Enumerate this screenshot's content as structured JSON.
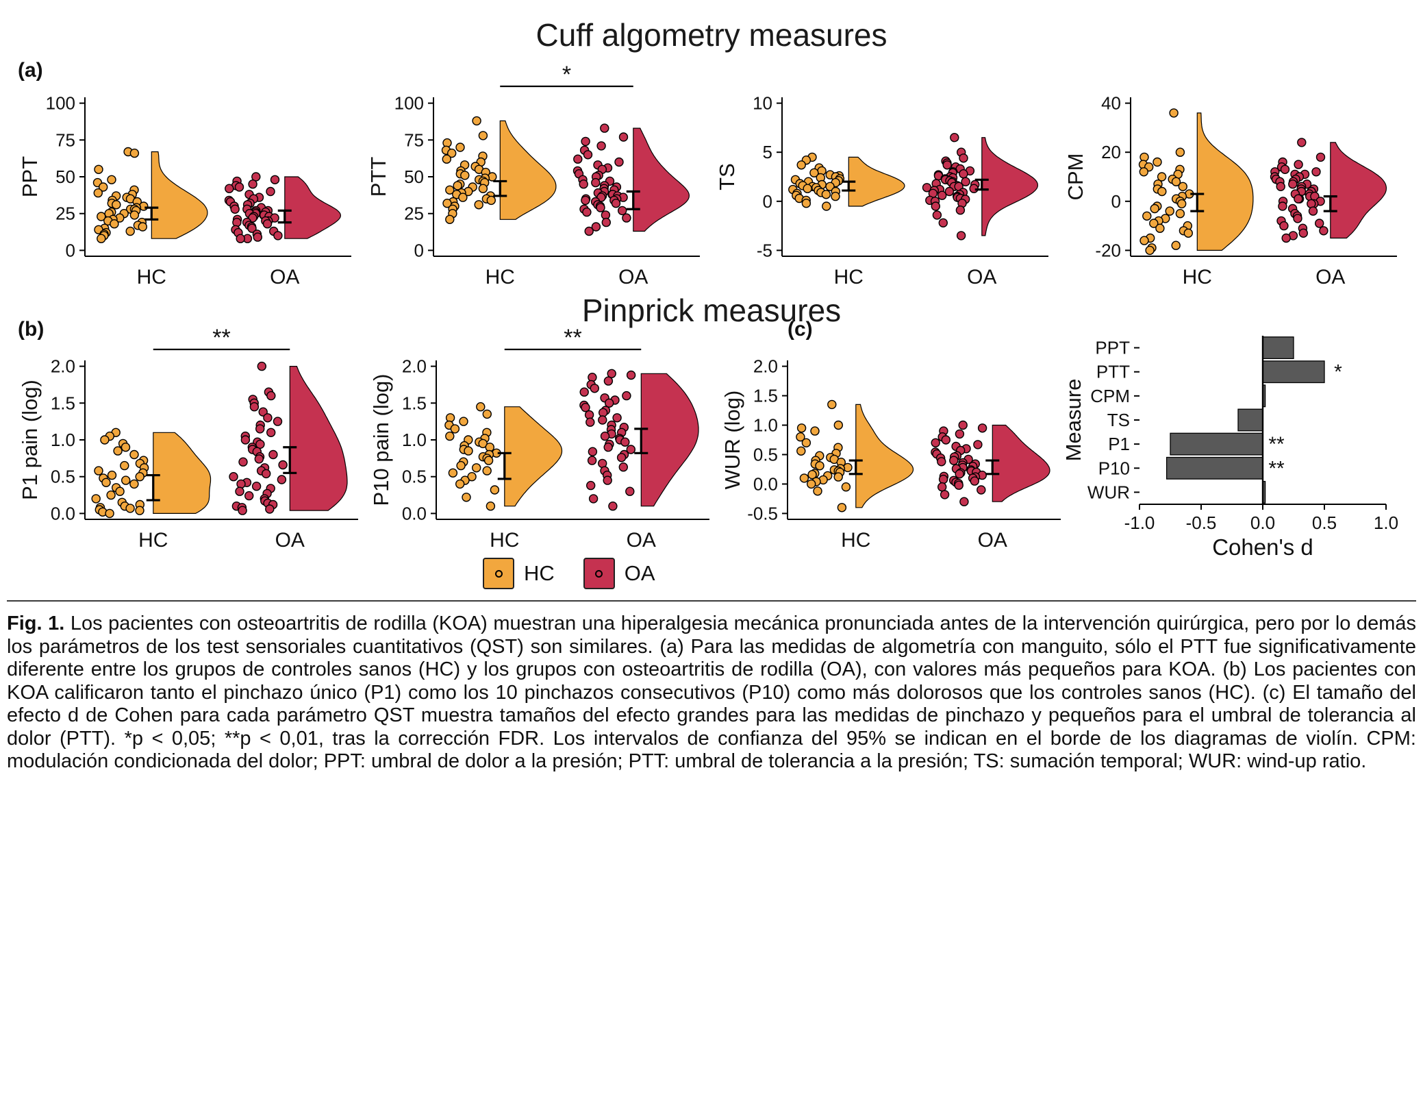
{
  "titles": {
    "panel_a": "Cuff algometry measures",
    "panel_b": "Pinprick measures"
  },
  "panel_labels": {
    "a": "(a)",
    "b": "(b)",
    "c": "(c)"
  },
  "colors": {
    "hc": "#F2A73E",
    "oa": "#C53250",
    "bar": "#595959"
  },
  "legend": [
    {
      "label": "HC",
      "color_key": "hc"
    },
    {
      "label": "OA",
      "color_key": "oa"
    }
  ],
  "chart_data": [
    {
      "type": "raincloud",
      "id": "ppt",
      "ylabel": "PPT",
      "ylim": [
        0,
        100
      ],
      "yticks": [
        0,
        25,
        50,
        75,
        100
      ],
      "ytick_decimals": 0,
      "categories": [
        "HC",
        "OA"
      ],
      "significance": null,
      "series": [
        {
          "name": "HC",
          "color": "hc",
          "ci95": [
            21,
            29
          ],
          "values": [
            67,
            66,
            55,
            48,
            46,
            43,
            41,
            39,
            38,
            37,
            36,
            35,
            34,
            33,
            32,
            31,
            30,
            29,
            28,
            28,
            27,
            26,
            25,
            25,
            24,
            23,
            22,
            21,
            20,
            19,
            18,
            17,
            16,
            15,
            14,
            13,
            12,
            11,
            10,
            8
          ]
        },
        {
          "name": "OA",
          "color": "oa",
          "ci95": [
            19,
            27
          ],
          "values": [
            50,
            48,
            47,
            45,
            44,
            43,
            42,
            40,
            38,
            36,
            35,
            34,
            33,
            32,
            31,
            30,
            29,
            28,
            28,
            27,
            27,
            26,
            26,
            25,
            25,
            24,
            24,
            23,
            23,
            22,
            22,
            21,
            20,
            20,
            19,
            19,
            18,
            17,
            16,
            15,
            14,
            13,
            12,
            11,
            10,
            9,
            8,
            8
          ]
        }
      ]
    },
    {
      "type": "raincloud",
      "id": "ptt",
      "ylabel": "PTT",
      "ylim": [
        0,
        100
      ],
      "yticks": [
        0,
        25,
        50,
        75,
        100
      ],
      "ytick_decimals": 0,
      "categories": [
        "HC",
        "OA"
      ],
      "significance": "*",
      "series": [
        {
          "name": "HC",
          "color": "hc",
          "ci95": [
            37,
            47
          ],
          "values": [
            88,
            78,
            73,
            70,
            68,
            66,
            64,
            62,
            60,
            58,
            57,
            55,
            54,
            53,
            52,
            51,
            50,
            49,
            48,
            47,
            46,
            45,
            44,
            43,
            42,
            41,
            40,
            39,
            38,
            37,
            36,
            35,
            34,
            33,
            32,
            31,
            30,
            28,
            25,
            21
          ]
        },
        {
          "name": "OA",
          "color": "oa",
          "ci95": [
            28,
            40
          ],
          "values": [
            83,
            77,
            74,
            71,
            68,
            65,
            62,
            60,
            58,
            56,
            55,
            54,
            52,
            51,
            50,
            48,
            47,
            46,
            45,
            44,
            43,
            42,
            41,
            40,
            39,
            38,
            38,
            37,
            37,
            36,
            36,
            35,
            35,
            34,
            34,
            33,
            32,
            31,
            30,
            29,
            28,
            27,
            26,
            24,
            22,
            19,
            16,
            13
          ]
        }
      ]
    },
    {
      "type": "raincloud",
      "id": "ts",
      "ylabel": "TS",
      "ylim": [
        -5,
        10
      ],
      "yticks": [
        -5,
        0,
        5,
        10
      ],
      "ytick_decimals": 0,
      "categories": [
        "HC",
        "OA"
      ],
      "significance": null,
      "series": [
        {
          "name": "HC",
          "color": "hc",
          "ci95": [
            1.1,
            2.0
          ],
          "values": [
            4.5,
            4.2,
            3.7,
            3.4,
            3.1,
            2.9,
            2.7,
            2.6,
            2.5,
            2.4,
            2.3,
            2.2,
            2.1,
            2.0,
            1.9,
            1.8,
            1.7,
            1.6,
            1.5,
            1.5,
            1.4,
            1.3,
            1.2,
            1.1,
            1.0,
            0.9,
            0.8,
            0.7,
            0.6,
            0.5,
            0.3,
            0.1,
            -0.2,
            -0.5
          ]
        },
        {
          "name": "OA",
          "color": "oa",
          "ci95": [
            1.2,
            2.2
          ],
          "values": [
            6.5,
            5.0,
            4.4,
            4.1,
            3.9,
            3.7,
            3.5,
            3.3,
            3.1,
            3.0,
            2.9,
            2.8,
            2.7,
            2.6,
            2.5,
            2.4,
            2.3,
            2.2,
            2.1,
            2.0,
            2.0,
            1.9,
            1.8,
            1.7,
            1.6,
            1.5,
            1.5,
            1.4,
            1.3,
            1.2,
            1.1,
            1.0,
            0.9,
            0.8,
            0.7,
            0.6,
            0.5,
            0.4,
            0.3,
            0.2,
            0.1,
            0.0,
            -0.2,
            -0.5,
            -0.9,
            -1.4,
            -2.2,
            -3.5
          ]
        }
      ]
    },
    {
      "type": "raincloud",
      "id": "cpm",
      "ylabel": "CPM",
      "ylim": [
        -20,
        40
      ],
      "yticks": [
        -20,
        0,
        20,
        40
      ],
      "ytick_decimals": 0,
      "categories": [
        "HC",
        "OA"
      ],
      "significance": null,
      "series": [
        {
          "name": "HC",
          "color": "hc",
          "ci95": [
            -4,
            3
          ],
          "values": [
            36,
            20,
            18,
            16,
            15,
            14,
            13,
            12,
            11,
            10,
            9,
            8,
            7,
            6,
            5,
            4,
            3,
            2,
            1,
            0,
            -1,
            -2,
            -3,
            -4,
            -5,
            -6,
            -7,
            -8,
            -9,
            -10,
            -11,
            -12,
            -13,
            -15,
            -16,
            -18,
            -19,
            -20
          ]
        },
        {
          "name": "OA",
          "color": "oa",
          "ci95": [
            -4,
            2
          ],
          "values": [
            24,
            18,
            16,
            15,
            14,
            13,
            12,
            12,
            11,
            11,
            10,
            10,
            9,
            9,
            8,
            8,
            7,
            7,
            6,
            6,
            5,
            5,
            4,
            4,
            3,
            3,
            2,
            2,
            1,
            1,
            0,
            0,
            -1,
            -1,
            -2,
            -3,
            -4,
            -5,
            -6,
            -7,
            -8,
            -9,
            -10,
            -11,
            -12,
            -13,
            -14,
            -15
          ]
        }
      ]
    },
    {
      "type": "raincloud",
      "id": "p1",
      "ylabel": "P1 pain (log)",
      "ylim": [
        0,
        2.0
      ],
      "yticks": [
        0.0,
        0.5,
        1.0,
        1.5,
        2.0
      ],
      "ytick_decimals": 1,
      "categories": [
        "HC",
        "OA"
      ],
      "significance": "**",
      "series": [
        {
          "name": "HC",
          "color": "hc",
          "ci95": [
            0.18,
            0.52
          ],
          "values": [
            1.1,
            1.05,
            1.0,
            0.95,
            0.9,
            0.85,
            0.8,
            0.72,
            0.68,
            0.65,
            0.62,
            0.58,
            0.55,
            0.52,
            0.5,
            0.48,
            0.45,
            0.42,
            0.4,
            0.35,
            0.3,
            0.25,
            0.2,
            0.15,
            0.12,
            0.1,
            0.08,
            0.07,
            0.05,
            0.04,
            0.02,
            0.0
          ]
        },
        {
          "name": "OA",
          "color": "oa",
          "ci95": [
            0.55,
            0.9
          ],
          "values": [
            2.0,
            1.65,
            1.6,
            1.55,
            1.5,
            1.45,
            1.38,
            1.3,
            1.25,
            1.2,
            1.15,
            1.1,
            1.05,
            1.0,
            0.97,
            0.94,
            0.9,
            0.87,
            0.84,
            0.8,
            0.77,
            0.74,
            0.7,
            0.66,
            0.62,
            0.58,
            0.54,
            0.5,
            0.46,
            0.42,
            0.4,
            0.37,
            0.34,
            0.3,
            0.27,
            0.24,
            0.2,
            0.17,
            0.14,
            0.12,
            0.1,
            0.08,
            0.06,
            0.04
          ]
        }
      ]
    },
    {
      "type": "raincloud",
      "id": "p10",
      "ylabel": "P10 pain (log)",
      "ylim": [
        0,
        2.0
      ],
      "yticks": [
        0.0,
        0.5,
        1.0,
        1.5,
        2.0
      ],
      "ytick_decimals": 1,
      "categories": [
        "HC",
        "OA"
      ],
      "significance": "**",
      "series": [
        {
          "name": "HC",
          "color": "hc",
          "ci95": [
            0.47,
            0.82
          ],
          "values": [
            1.45,
            1.35,
            1.3,
            1.25,
            1.2,
            1.15,
            1.1,
            1.05,
            1.02,
            1.0,
            0.97,
            0.95,
            0.92,
            0.9,
            0.87,
            0.85,
            0.82,
            0.8,
            0.77,
            0.75,
            0.72,
            0.7,
            0.65,
            0.62,
            0.58,
            0.55,
            0.5,
            0.45,
            0.4,
            0.32,
            0.22,
            0.1
          ]
        },
        {
          "name": "OA",
          "color": "oa",
          "ci95": [
            0.82,
            1.15
          ],
          "values": [
            1.9,
            1.88,
            1.85,
            1.8,
            1.75,
            1.7,
            1.65,
            1.6,
            1.57,
            1.54,
            1.5,
            1.47,
            1.44,
            1.4,
            1.37,
            1.34,
            1.3,
            1.27,
            1.24,
            1.2,
            1.17,
            1.14,
            1.1,
            1.08,
            1.05,
            1.02,
            1.0,
            0.97,
            0.94,
            0.9,
            0.87,
            0.84,
            0.8,
            0.76,
            0.72,
            0.68,
            0.63,
            0.58,
            0.52,
            0.45,
            0.38,
            0.3,
            0.2,
            0.1
          ]
        }
      ]
    },
    {
      "type": "raincloud",
      "id": "wur",
      "ylabel": "WUR (log)",
      "ylim": [
        -0.5,
        2.0
      ],
      "yticks": [
        -0.5,
        0.0,
        0.5,
        1.0,
        1.5,
        2.0
      ],
      "ytick_decimals": 1,
      "categories": [
        "HC",
        "OA"
      ],
      "significance": null,
      "series": [
        {
          "name": "HC",
          "color": "hc",
          "ci95": [
            0.17,
            0.4
          ],
          "values": [
            1.35,
            1.0,
            0.95,
            0.9,
            0.8,
            0.7,
            0.62,
            0.56,
            0.52,
            0.48,
            0.45,
            0.42,
            0.4,
            0.37,
            0.34,
            0.31,
            0.28,
            0.26,
            0.24,
            0.22,
            0.2,
            0.18,
            0.16,
            0.14,
            0.12,
            0.1,
            0.07,
            0.04,
            0.0,
            -0.05,
            -0.12,
            -0.4
          ]
        },
        {
          "name": "OA",
          "color": "oa",
          "ci95": [
            0.17,
            0.4
          ],
          "values": [
            1.0,
            0.95,
            0.9,
            0.85,
            0.8,
            0.75,
            0.7,
            0.67,
            0.64,
            0.6,
            0.57,
            0.54,
            0.51,
            0.48,
            0.46,
            0.44,
            0.42,
            0.4,
            0.38,
            0.36,
            0.34,
            0.32,
            0.3,
            0.28,
            0.26,
            0.24,
            0.22,
            0.2,
            0.19,
            0.17,
            0.15,
            0.13,
            0.12,
            0.1,
            0.08,
            0.06,
            0.05,
            0.03,
            0.01,
            -0.02,
            -0.05,
            -0.1,
            -0.18,
            -0.3
          ]
        }
      ]
    },
    {
      "type": "bar",
      "id": "cohens_d",
      "orientation": "horizontal",
      "xlabel": "Cohen's d",
      "ylabel": "Measure",
      "xlim": [
        -1.0,
        1.0
      ],
      "xticks": [
        -1.0,
        -0.5,
        0.0,
        0.5,
        1.0
      ],
      "categories": [
        "PPT",
        "PTT",
        "CPM",
        "TS",
        "P1",
        "P10",
        "WUR"
      ],
      "values": [
        0.25,
        0.5,
        0.02,
        -0.2,
        -0.75,
        -0.78,
        0.02
      ],
      "significance": [
        "",
        "*",
        "",
        "",
        "**",
        "**",
        ""
      ]
    }
  ],
  "caption": {
    "label": "Fig. 1.",
    "text": "Los pacientes con osteoartritis de rodilla (KOA) muestran una hiperalgesia mecánica pronunciada antes de la intervención quirúrgica, pero por lo demás los parámetros de los test sensoriales cuantitativos (QST) son similares. (a) Para las medidas de algometría con manguito, sólo el PTT fue significativamente diferente entre los grupos de controles sanos (HC) y los grupos con osteoartritis de rodilla (OA), con valores más pequeños para KOA. (b) Los pacientes con KOA calificaron tanto el pinchazo único (P1) como los 10 pinchazos consecutivos (P10) como más dolorosos que los controles sanos (HC). (c) El tamaño del efecto d de Cohen para cada parámetro QST muestra tamaños del efecto grandes para las medidas de pinchazo y pequeños para el umbral de tolerancia al dolor (PTT). *p < 0,05; **p < 0,01, tras la corrección FDR. Los intervalos de confianza del 95% se indican en el borde de los diagramas de violín. CPM: modulación condicionada del dolor; PPT: umbral de dolor a la presión; PTT: umbral de tolerancia a la presión; TS: sumación temporal; WUR: wind-up ratio."
  }
}
